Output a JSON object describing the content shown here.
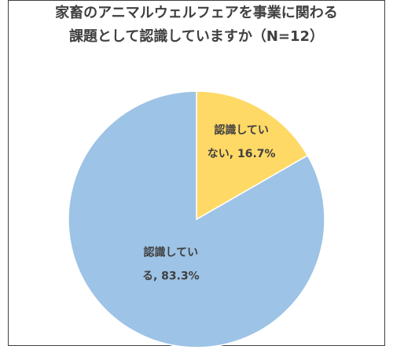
{
  "chart_data": {
    "type": "pie",
    "title": "家畜のアニマルウェルフェアを事業に関わる\n課題として認識していますか（N=12）",
    "categories": [
      "認識していない",
      "認識している"
    ],
    "values": [
      16.7,
      83.3
    ],
    "value_labels": [
      "認識していない, 16.7%",
      "認識している, 83.3%"
    ],
    "colors": [
      "#ffd966",
      "#9dc3e6"
    ]
  }
}
